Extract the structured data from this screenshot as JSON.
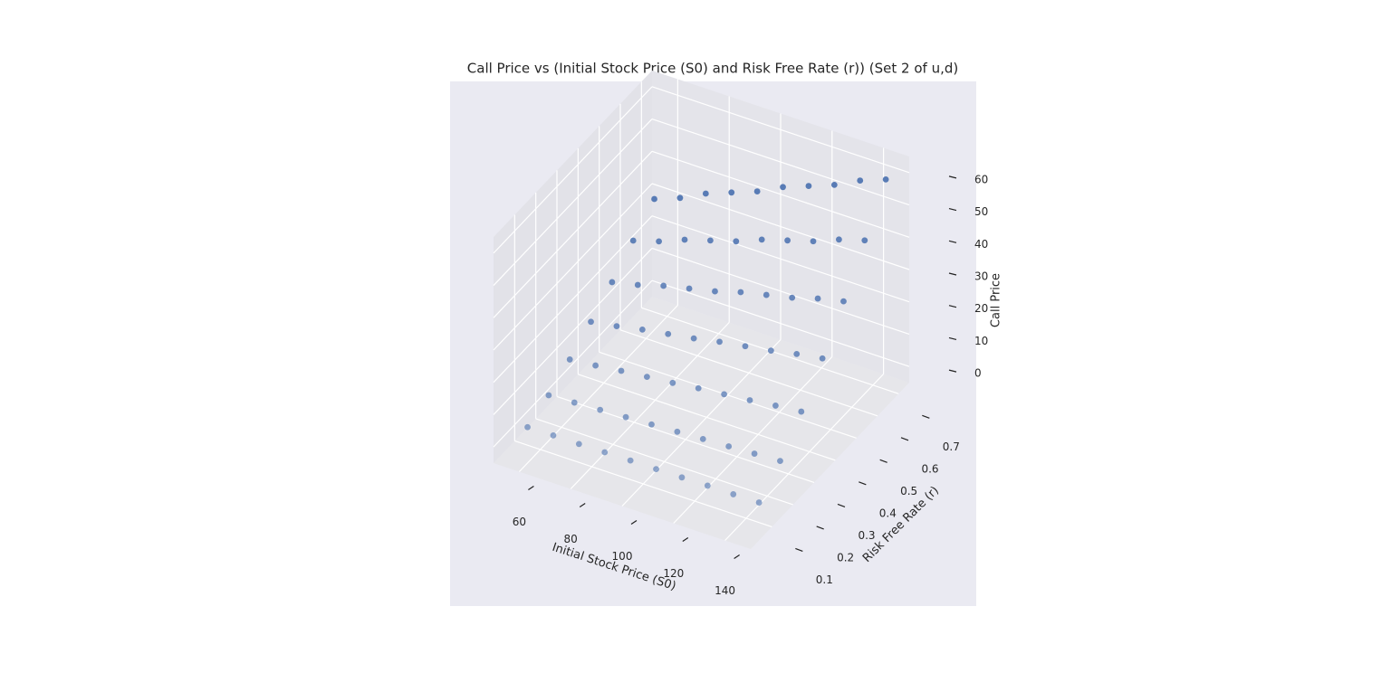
{
  "chart_data": {
    "type": "scatter3d",
    "title": "Call Price vs (Initial Stock Price (S0) and Risk Free Rate (r)) (Set 2 of u,d)",
    "xlabel": "Initial Stock Price (S0)",
    "ylabel": "Risk Free Rate (r)",
    "zlabel": "Call Price",
    "color": "#4c72b0",
    "grid": true,
    "xlim": [
      50,
      150
    ],
    "xticks": [
      60,
      80,
      100,
      120,
      140
    ],
    "ylim": [
      0,
      0.75
    ],
    "yticks": [
      0.1,
      0.2,
      0.3,
      0.4,
      0.5,
      0.6,
      0.7
    ],
    "zlim": [
      -5,
      65
    ],
    "zticks": [
      0,
      10,
      20,
      30,
      40,
      50,
      60
    ],
    "x": [
      55,
      55,
      55,
      55,
      55,
      55,
      55,
      65,
      65,
      65,
      65,
      65,
      65,
      65,
      75,
      75,
      75,
      75,
      75,
      75,
      75,
      85,
      85,
      85,
      85,
      85,
      85,
      85,
      95,
      95,
      95,
      95,
      95,
      95,
      95,
      105,
      105,
      105,
      105,
      105,
      105,
      105,
      115,
      115,
      115,
      115,
      115,
      115,
      115,
      125,
      125,
      125,
      125,
      125,
      125,
      125,
      135,
      135,
      135,
      135,
      135,
      135,
      135,
      145,
      145,
      145,
      145,
      145,
      145,
      145
    ],
    "y": [
      0.1,
      0.2,
      0.3,
      0.4,
      0.5,
      0.6,
      0.7,
      0.1,
      0.2,
      0.3,
      0.4,
      0.5,
      0.6,
      0.7,
      0.1,
      0.2,
      0.3,
      0.4,
      0.5,
      0.6,
      0.7,
      0.1,
      0.2,
      0.3,
      0.4,
      0.5,
      0.6,
      0.7,
      0.1,
      0.2,
      0.3,
      0.4,
      0.5,
      0.6,
      0.7,
      0.1,
      0.2,
      0.3,
      0.4,
      0.5,
      0.6,
      0.7,
      0.1,
      0.2,
      0.3,
      0.4,
      0.5,
      0.6,
      0.7,
      0.1,
      0.2,
      0.3,
      0.4,
      0.5,
      0.6,
      0.7,
      0.1,
      0.2,
      0.3,
      0.4,
      0.5,
      0.6,
      0.7,
      0.1,
      0.2,
      0.3,
      0.4,
      0.5,
      0.6,
      0.7
    ],
    "z": [
      0.6,
      3.6,
      7.8,
      12.6,
      18,
      24,
      30,
      0.7,
      4.0,
      8.6,
      13.9,
      19.8,
      26.4,
      33,
      0.7,
      4.4,
      9.6,
      15.5,
      22.2,
      29.6,
      37,
      0.8,
      4.8,
      10.4,
      16.8,
      24,
      32,
      40,
      0.9,
      5.2,
      11.2,
      18.1,
      25.8,
      34.4,
      43,
      0.9,
      5.6,
      12.2,
      19.7,
      28.2,
      37.6,
      47,
      1,
      6,
      13,
      21,
      30,
      40,
      50,
      1.1,
      6.4,
      13.8,
      22.3,
      31.8,
      42.4,
      53,
      1.1,
      6.8,
      14.8,
      23.9,
      34.2,
      45.6,
      57,
      1.2,
      7.2,
      15.6,
      25.2,
      36,
      48,
      60
    ]
  }
}
